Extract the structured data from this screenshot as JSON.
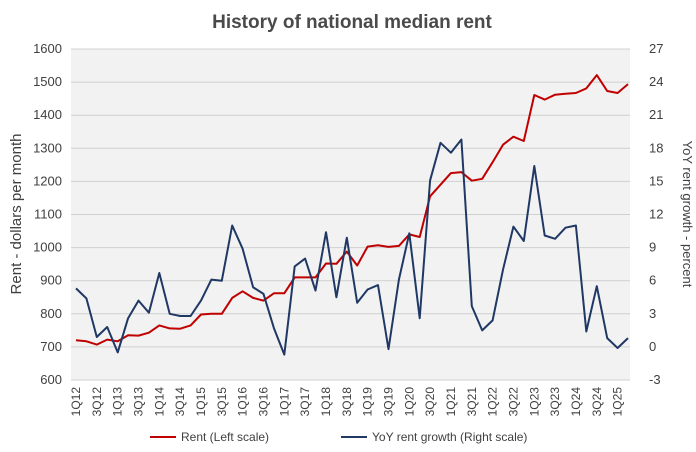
{
  "chart_data": {
    "type": "line",
    "title": "History of national median rent",
    "ylabel": "Rent - dollars per month",
    "y2label": "YoY rent growth - percent",
    "ylim": [
      600,
      1600
    ],
    "yticks": [
      600,
      700,
      800,
      900,
      1000,
      1100,
      1200,
      1300,
      1400,
      1500,
      1600
    ],
    "y2lim": [
      -3,
      27
    ],
    "y2ticks": [
      -3,
      0,
      3,
      6,
      9,
      12,
      15,
      18,
      21,
      24,
      27
    ],
    "xtick_labels": [
      "1Q12",
      "3Q12",
      "1Q13",
      "3Q13",
      "1Q14",
      "3Q14",
      "1Q15",
      "3Q15",
      "1Q16",
      "3Q16",
      "1Q17",
      "3Q17",
      "1Q18",
      "3Q18",
      "1Q19",
      "3Q19",
      "1Q20",
      "3Q20",
      "1Q21",
      "3Q21",
      "1Q22",
      "3Q22",
      "1Q23",
      "3Q23",
      "1Q24",
      "3Q24",
      "1Q25"
    ],
    "grid": true,
    "legend_position": "bottom",
    "series": [
      {
        "name": "Rent (Left scale)",
        "axis": "left",
        "color": "#c00000",
        "values": [
          720,
          717,
          707,
          722,
          717,
          735,
          734,
          743,
          765,
          756,
          755,
          765,
          798,
          800,
          800,
          848,
          868,
          848,
          840,
          862,
          862,
          910,
          910,
          910,
          952,
          951,
          988,
          946,
          1003,
          1007,
          1002,
          1005,
          1040,
          1032,
          1155,
          1190,
          1225,
          1228,
          1202,
          1208,
          1258,
          1311,
          1335,
          1322,
          1461,
          1447,
          1462,
          1465,
          1467,
          1481,
          1521,
          1473,
          1467,
          1494
        ]
      },
      {
        "name": "YoY rent growth (Right scale)",
        "axis": "right",
        "color": "#1f3864",
        "values": [
          5.3,
          4.4,
          0.9,
          1.8,
          -0.5,
          2.6,
          4.2,
          3.1,
          6.7,
          3.0,
          2.8,
          2.8,
          4.2,
          6.1,
          6.0,
          11.0,
          8.9,
          5.4,
          4.8,
          1.7,
          -0.7,
          7.3,
          8.0,
          5.1,
          10.4,
          4.5,
          9.9,
          4.0,
          5.2,
          5.6,
          -0.2,
          6.1,
          10.3,
          2.6,
          15.1,
          18.5,
          17.6,
          18.8,
          3.7,
          1.5,
          2.4,
          7.0,
          10.9,
          9.6,
          16.4,
          10.1,
          9.8,
          10.8,
          11.0,
          1.4,
          5.5,
          0.8,
          -0.1,
          0.8
        ]
      }
    ]
  }
}
